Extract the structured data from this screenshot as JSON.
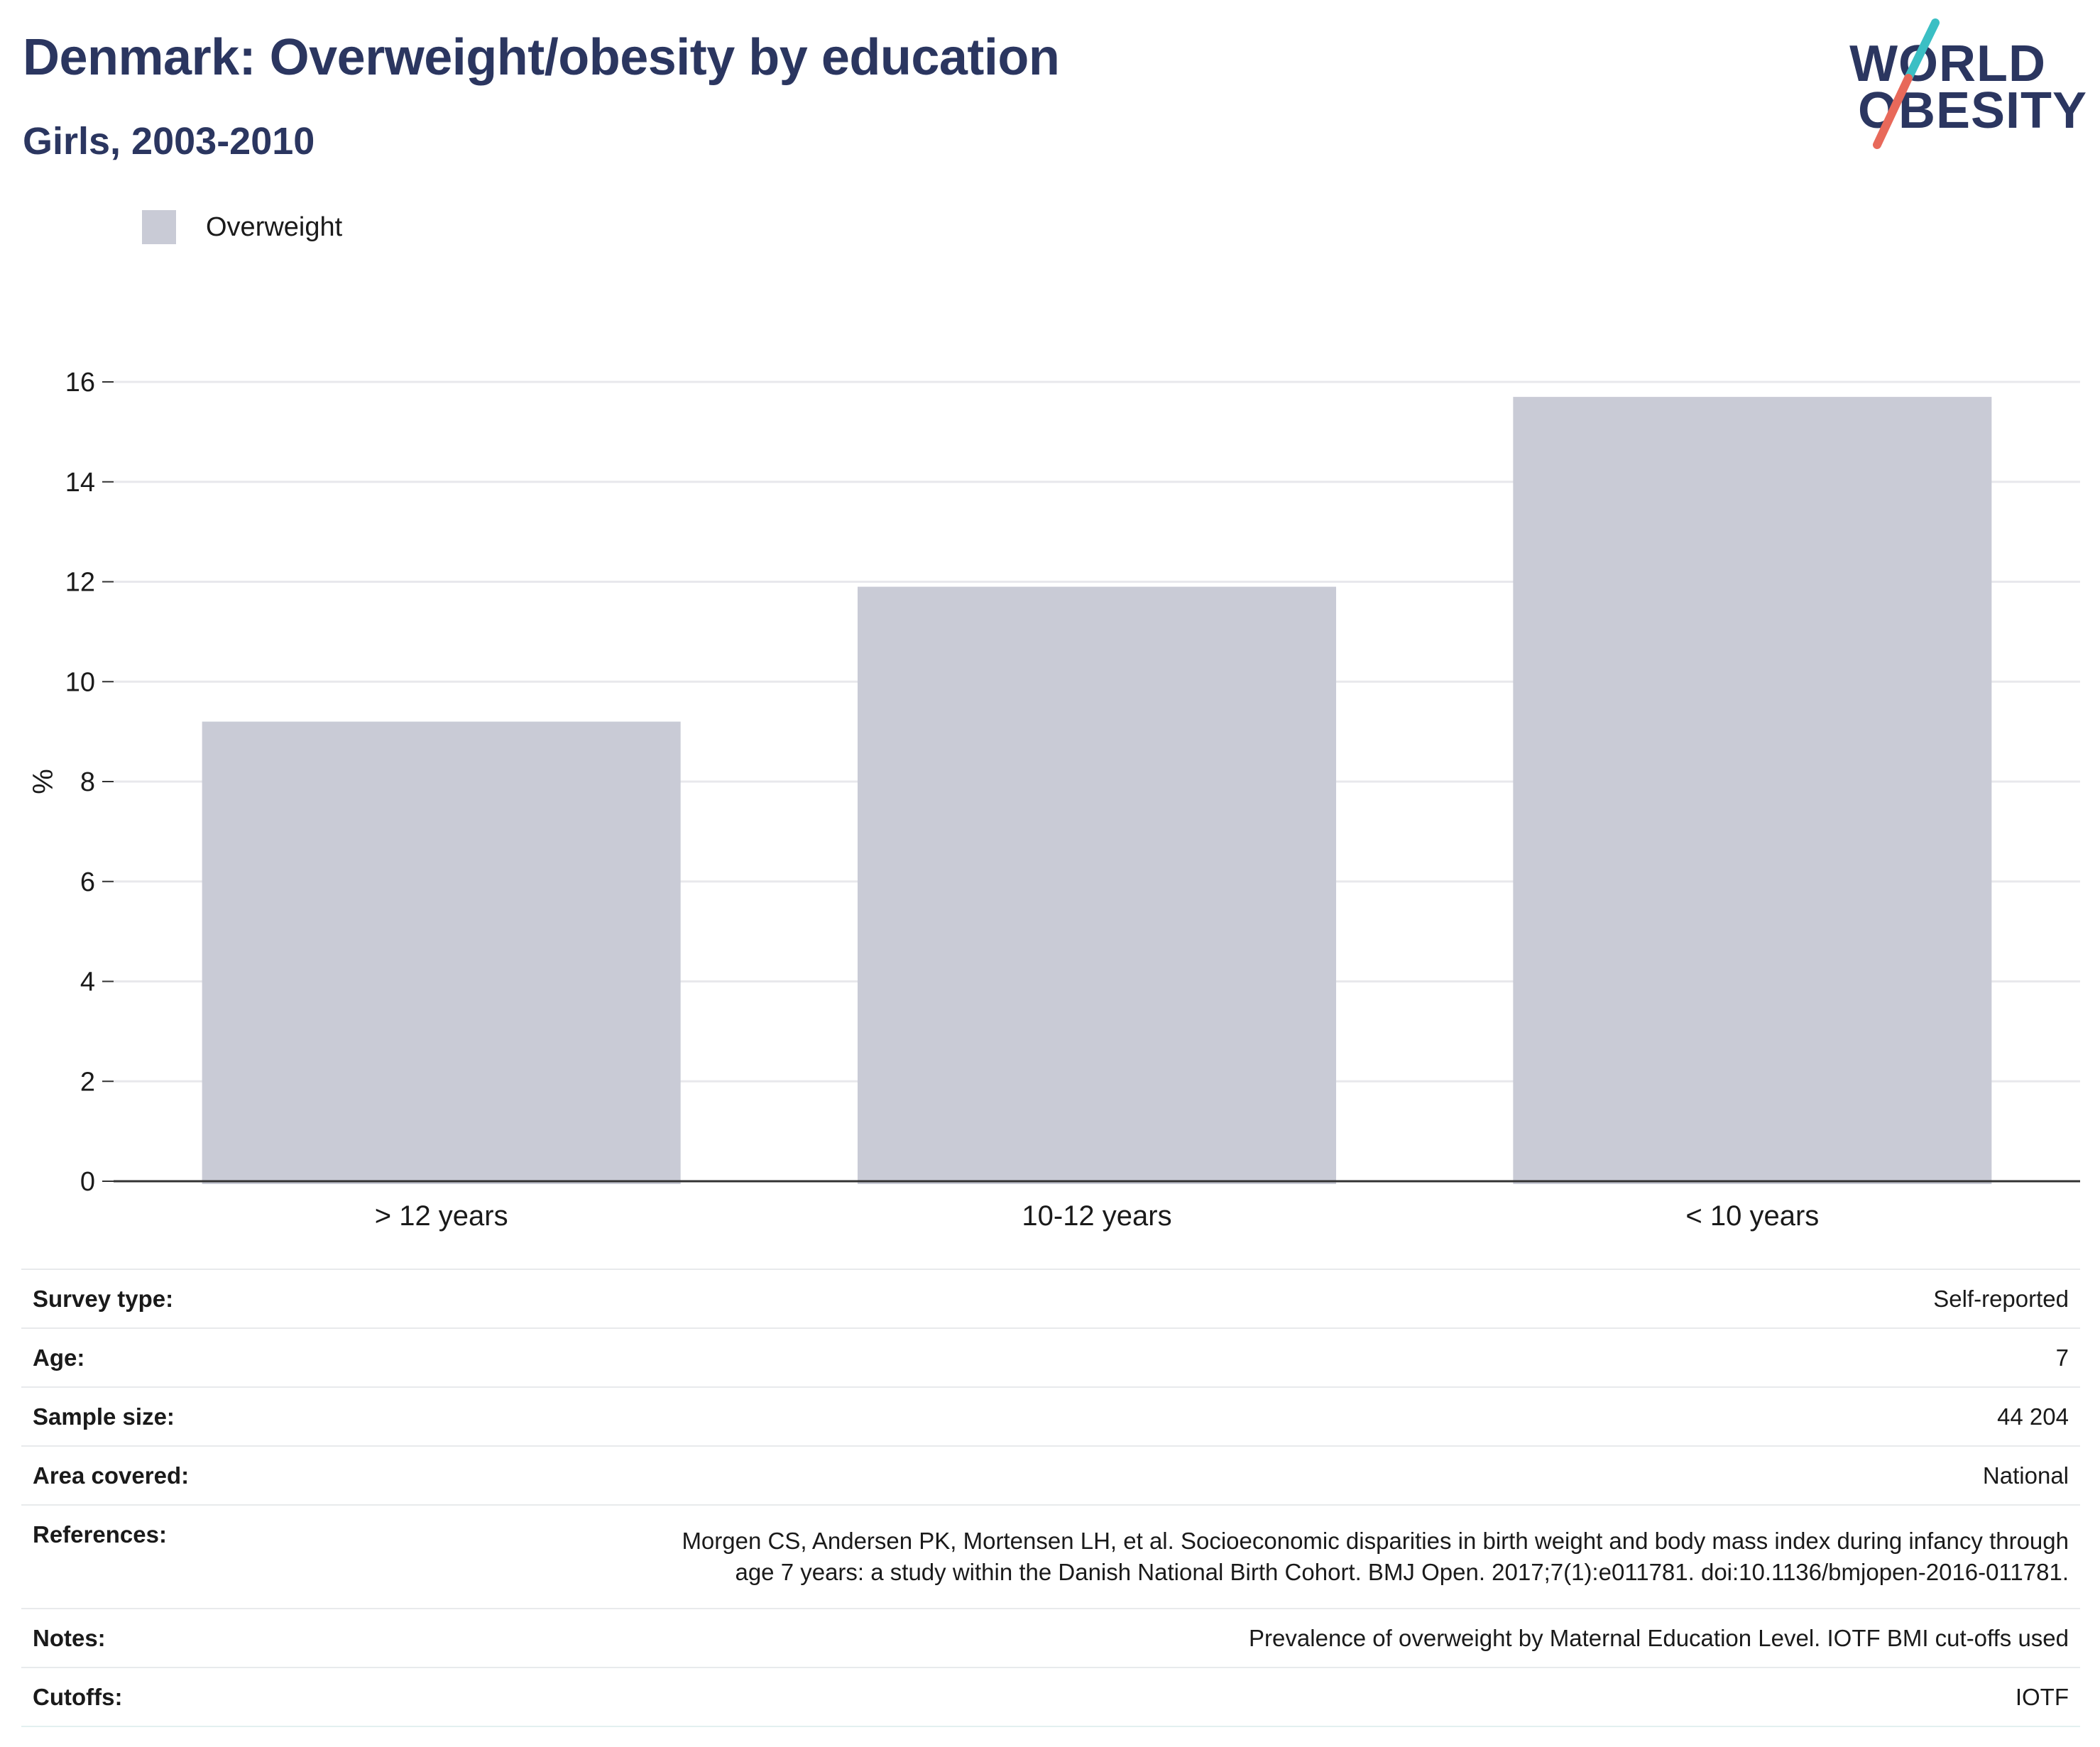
{
  "header": {
    "title": "Denmark: Overweight/obesity by education",
    "subtitle": "Girls, 2003-2010"
  },
  "logo": {
    "line1": "WORLD",
    "line2": "OBESITY",
    "colors": [
      "#3bbfc4",
      "#e8695a"
    ]
  },
  "legend": {
    "items": [
      {
        "label": "Overweight",
        "color": "#c9cbd6"
      }
    ],
    "placement": "top-left"
  },
  "chart_data": {
    "type": "bar",
    "categories": [
      "> 12 years",
      "10-12 years",
      "< 10 years"
    ],
    "series": [
      {
        "name": "Overweight",
        "values": [
          9.2,
          11.9,
          15.7
        ],
        "color": "#c9cbd6"
      }
    ],
    "ylabel": "%",
    "xlabel": "",
    "ylim": [
      0,
      16
    ],
    "yticks": [
      0,
      2,
      4,
      6,
      8,
      10,
      12,
      14,
      16
    ],
    "grid": true
  },
  "info": {
    "rows": [
      {
        "key": "Survey type:",
        "value": "Self-reported"
      },
      {
        "key": "Age:",
        "value": "7"
      },
      {
        "key": "Sample size:",
        "value": "44 204"
      },
      {
        "key": "Area covered:",
        "value": "National"
      },
      {
        "key": "References:",
        "value_lines": [
          "Morgen CS, Andersen PK, Mortensen LH, et al. Socioeconomic disparities in birth weight and body mass index during infancy through",
          "age 7 years: a study within the Danish National Birth Cohort. BMJ Open. 2017;7(1):e011781. doi:10.1136/bmjopen-2016-011781."
        ]
      },
      {
        "key": "Notes:",
        "value": "Prevalence of overweight by Maternal Education Level. IOTF BMI cut-offs used"
      },
      {
        "key": "Cutoffs:",
        "value": "IOTF"
      }
    ]
  }
}
